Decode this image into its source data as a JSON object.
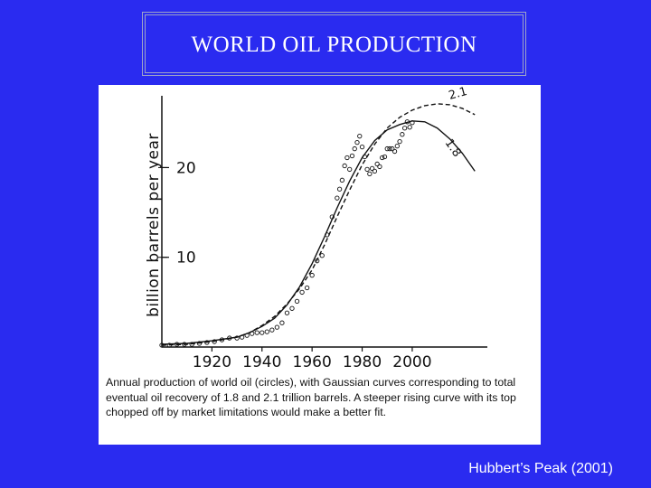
{
  "slide": {
    "title": "WORLD OIL PRODUCTION",
    "credit": "Hubbert’s Peak (2001)",
    "background_color": "#2a2bf0"
  },
  "chart_data": {
    "type": "line",
    "ylabel": "billion barrels per year",
    "xlim": [
      1900,
      2030
    ],
    "ylim": [
      0,
      28
    ],
    "x_ticks": [
      1920,
      1940,
      1960,
      1980,
      2000
    ],
    "y_ticks": [
      10,
      20
    ],
    "x_tick_labels": [
      "1920",
      "1940",
      "1960",
      "1980",
      "2000"
    ],
    "y_tick_labels": [
      "10",
      "20"
    ],
    "curve_labels": [
      "2.1",
      "1.8"
    ],
    "series": [
      {
        "name": "world oil (circles)",
        "style": "circles",
        "x": [
          1900,
          1903,
          1906,
          1909,
          1912,
          1915,
          1918,
          1921,
          1924,
          1927,
          1930,
          1932,
          1934,
          1936,
          1938,
          1940,
          1942,
          1944,
          1946,
          1948,
          1950,
          1952,
          1954,
          1956,
          1958,
          1960,
          1962,
          1964,
          1966,
          1968,
          1970,
          1971,
          1972,
          1973,
          1974,
          1975,
          1976,
          1977,
          1978,
          1979,
          1980,
          1981,
          1982,
          1983,
          1984,
          1985,
          1986,
          1987,
          1988,
          1989,
          1990,
          1991,
          1992,
          1993,
          1994,
          1995,
          1996,
          1997,
          1998,
          1999,
          2000
        ],
        "y": [
          0.2,
          0.2,
          0.3,
          0.3,
          0.3,
          0.4,
          0.5,
          0.6,
          0.8,
          1.0,
          1.0,
          1.1,
          1.3,
          1.5,
          1.6,
          1.6,
          1.7,
          1.9,
          2.2,
          2.7,
          3.8,
          4.3,
          5.1,
          6.1,
          6.6,
          8.0,
          9.6,
          10.2,
          12.5,
          14.5,
          16.6,
          17.6,
          18.6,
          20.2,
          21.1,
          19.8,
          21.3,
          22.1,
          22.8,
          23.5,
          22.3,
          21.2,
          19.8,
          19.3,
          19.9,
          19.6,
          20.4,
          20.1,
          21.1,
          21.2,
          22.1,
          22.1,
          22.1,
          21.8,
          22.4,
          22.9,
          23.7,
          24.4,
          25.1,
          24.5,
          25.0
        ]
      },
      {
        "name": "1.8 trillion barrels",
        "style": "solid",
        "x": [
          1900,
          1910,
          1920,
          1930,
          1935,
          1940,
          1945,
          1950,
          1955,
          1960,
          1965,
          1970,
          1975,
          1980,
          1985,
          1990,
          1995,
          2000,
          2005,
          2010,
          2015,
          2020,
          2025
        ],
        "y": [
          0.3,
          0.4,
          0.7,
          1.1,
          1.6,
          2.3,
          3.2,
          4.7,
          6.7,
          9.3,
          12.3,
          15.5,
          18.5,
          21.1,
          23.0,
          24.2,
          24.8,
          25.2,
          25.1,
          24.4,
          23.2,
          21.6,
          19.6
        ]
      },
      {
        "name": "2.1 trillion barrels",
        "style": "dashed",
        "x": [
          1900,
          1910,
          1920,
          1930,
          1935,
          1940,
          1945,
          1950,
          1955,
          1960,
          1965,
          1970,
          1975,
          1980,
          1985,
          1990,
          1995,
          2000,
          2005,
          2010,
          2015,
          2020,
          2025
        ],
        "y": [
          0.2,
          0.3,
          0.6,
          1.1,
          1.6,
          2.4,
          3.4,
          4.8,
          6.5,
          8.6,
          11.4,
          14.5,
          17.5,
          20.3,
          22.6,
          24.4,
          25.6,
          26.4,
          26.9,
          27.1,
          27.0,
          26.6,
          25.9
        ]
      }
    ]
  },
  "caption": "Annual production of world oil (circles), with Gaussian curves corresponding to total eventual oil recovery of 1.8 and 2.1 trillion barrels. A steeper rising curve with its top chopped off by market limitations would make a better fit."
}
